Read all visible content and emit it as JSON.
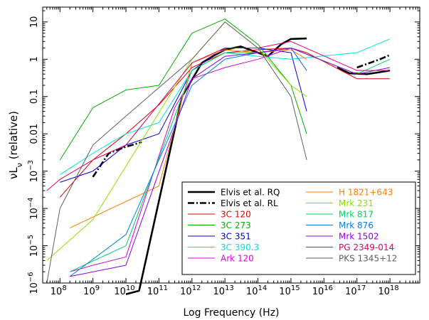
{
  "chart_data": {
    "type": "line",
    "title": "",
    "xlabel": "Log Frequency (Hz)",
    "ylabel": "νLν (relative)",
    "ylabel_parts": {
      "nu1": "ν",
      "L": "L",
      "sub": "ν",
      "rest": " (relative)"
    },
    "x_scale": "log",
    "y_scale": "log",
    "xlim": [
      30000000.0,
      8e+18
    ],
    "ylim": [
      1e-06,
      25
    ],
    "grid": false,
    "legend_position": "lower-right",
    "x_ticks": [
      {
        "value": 100000000.0,
        "base": "10",
        "exp": "8"
      },
      {
        "value": 1000000000.0,
        "base": "10",
        "exp": "9"
      },
      {
        "value": 10000000000.0,
        "base": "10",
        "exp": "10"
      },
      {
        "value": 100000000000.0,
        "base": "10",
        "exp": "11"
      },
      {
        "value": 1000000000000.0,
        "base": "10",
        "exp": "12"
      },
      {
        "value": 10000000000000.0,
        "base": "10",
        "exp": "13"
      },
      {
        "value": 100000000000000.0,
        "base": "10",
        "exp": "14"
      },
      {
        "value": 1000000000000000.0,
        "base": "10",
        "exp": "15"
      },
      {
        "value": 1e+16,
        "base": "10",
        "exp": "16"
      },
      {
        "value": 1e+17,
        "base": "10",
        "exp": "17"
      },
      {
        "value": 1e+18,
        "base": "10",
        "exp": "18"
      }
    ],
    "y_ticks": [
      {
        "value": 1e-06,
        "base": "10",
        "exp": "−6"
      },
      {
        "value": 1e-05,
        "base": "10",
        "exp": "−5"
      },
      {
        "value": 0.0001,
        "base": "10",
        "exp": "−4"
      },
      {
        "value": 0.001,
        "base": "10",
        "exp": "−3"
      },
      {
        "value": 0.01,
        "label": "0.01"
      },
      {
        "value": 0.1,
        "label": "0.1"
      },
      {
        "value": 1,
        "label": "1"
      },
      {
        "value": 10,
        "label": "10"
      }
    ],
    "series": [
      {
        "name": "Elvis et al. RQ",
        "color": "#000000",
        "style": "solid-thick",
        "points": [
          [
            10000000000.0,
            5e-07
          ],
          [
            25000000000.0,
            6.2e-07
          ],
          [
            500000000000.0,
            0.1
          ],
          [
            2000000000000.0,
            0.8
          ],
          [
            5000000000000.0,
            1.3
          ],
          [
            10000000000000.0,
            1.8
          ],
          [
            30000000000000.0,
            2.2
          ],
          [
            100000000000000.0,
            1.5
          ],
          [
            200000000000000.0,
            1.2
          ],
          [
            500000000000000.0,
            2.5
          ],
          [
            1000000000000000.0,
            3.5
          ],
          [
            3000000000000000.0,
            3.6
          ]
        ]
      },
      {
        "name": "",
        "color": "#000000",
        "style": "solid-thick",
        "points": [
          [
            2.5e+16,
            0.6
          ],
          [
            6e+16,
            0.42
          ],
          [
            2e+17,
            0.4
          ],
          [
            5e+17,
            0.45
          ],
          [
            1e+18,
            0.5
          ]
        ]
      },
      {
        "name": "Elvis et al. RL",
        "color": "#000000",
        "style": "dashdot-thick",
        "points": [
          [
            1000000000.0,
            0.0007
          ],
          [
            3000000000.0,
            0.003
          ],
          [
            10000000000.0,
            0.0045
          ],
          [
            30000000000.0,
            0.006
          ]
        ]
      },
      {
        "name": "",
        "color": "#000000",
        "style": "dashdot-thick",
        "points": [
          [
            1e+17,
            0.6
          ],
          [
            5e+17,
            1.0
          ],
          [
            1e+18,
            1.3
          ]
        ]
      },
      {
        "name": "3C 120",
        "color": "#e00000",
        "style": "solid",
        "points": [
          [
            100000000.0,
            0.0002
          ],
          [
            1000000000.0,
            0.002
          ],
          [
            10000000000.0,
            0.01
          ],
          [
            100000000000.0,
            0.06
          ],
          [
            1000000000000.0,
            0.6
          ],
          [
            10000000000000.0,
            1.5
          ],
          [
            100000000000000.0,
            1.8
          ],
          [
            1000000000000000.0,
            2.0
          ],
          [
            3000000000000000.0,
            1.5
          ],
          [
            1e+17,
            0.3
          ],
          [
            1e+18,
            0.3
          ]
        ]
      },
      {
        "name": "3C 273",
        "color": "#00b000",
        "style": "solid",
        "points": [
          [
            100000000.0,
            0.002
          ],
          [
            1000000000.0,
            0.05
          ],
          [
            10000000000.0,
            0.15
          ],
          [
            100000000000.0,
            0.2
          ],
          [
            1000000000000.0,
            5
          ],
          [
            10000000000000.0,
            12
          ],
          [
            100000000000000.0,
            2.5
          ],
          [
            1000000000000000.0,
            0.2
          ],
          [
            3000000000000000.0,
            0.01
          ]
        ]
      },
      {
        "name": "3C 351",
        "color": "#0000d0",
        "style": "solid",
        "points": [
          [
            100000000.0,
            0.0005
          ],
          [
            1000000000.0,
            0.001
          ],
          [
            10000000000.0,
            0.005
          ],
          [
            100000000000.0,
            0.01
          ],
          [
            1000000000000.0,
            0.5
          ],
          [
            10000000000000.0,
            2
          ],
          [
            100000000000000.0,
            2
          ],
          [
            1000000000000000.0,
            1.5
          ],
          [
            3000000000000000.0,
            0.04
          ]
        ]
      },
      {
        "name": "3C 390.3",
        "color": "#00e0e0",
        "style": "solid",
        "points": [
          [
            100000000.0,
            0.0008
          ],
          [
            1000000000.0,
            0.003
          ],
          [
            10000000000.0,
            0.01
          ],
          [
            100000000000.0,
            0.02
          ],
          [
            1000000000000.0,
            0.5
          ],
          [
            10000000000000.0,
            1.5
          ],
          [
            100000000000000.0,
            1.2
          ],
          [
            1000000000000000.0,
            1.0
          ],
          [
            1e+17,
            1.5
          ],
          [
            1e+18,
            3.5
          ]
        ]
      },
      {
        "name": "Ark 120",
        "color": "#e000e0",
        "style": "solid",
        "points": [
          [
            200000000.0,
            2e-06
          ],
          [
            1000000000.0,
            3e-06
          ],
          [
            10000000000.0,
            5e-06
          ],
          [
            300000000000.0,
            0.05
          ],
          [
            1000000000000.0,
            0.3
          ],
          [
            10000000000000.0,
            0.6
          ],
          [
            100000000000000.0,
            1.0
          ],
          [
            1000000000000000.0,
            2.0
          ],
          [
            3000000000000000.0,
            0.5
          ]
        ]
      },
      {
        "name": "H 1821+643",
        "color": "#ff8000",
        "style": "solid",
        "points": [
          [
            200000000.0,
            3e-05
          ],
          [
            100000000000.0,
            0.0004
          ],
          [
            1000000000000.0,
            0.8
          ],
          [
            10000000000000.0,
            1.8
          ],
          [
            100000000000000.0,
            1.5
          ],
          [
            1000000000000000.0,
            1.8
          ],
          [
            3000000000000000.0,
            1.0
          ]
        ]
      },
      {
        "name": "Mrk 231",
        "color": "#88e000",
        "style": "solid",
        "points": [
          [
            40000000.0,
            4e-06
          ],
          [
            1000000000.0,
            5e-05
          ],
          [
            1000000000000.0,
            1.0
          ],
          [
            10000000000000.0,
            10
          ],
          [
            100000000000000.0,
            2
          ],
          [
            1000000000000000.0,
            0.2
          ],
          [
            3000000000000000.0,
            0.1
          ]
        ]
      },
      {
        "name": "Mrk 817",
        "color": "#00d060",
        "style": "solid",
        "points": [
          [
            200000000.0,
            2e-06
          ],
          [
            10000000000.0,
            1e-05
          ],
          [
            1000000000000.0,
            0.5
          ],
          [
            10000000000000.0,
            1.5
          ],
          [
            100000000000000.0,
            1.5
          ],
          [
            1000000000000000.0,
            2
          ],
          [
            1e+17,
            0.4
          ],
          [
            1e+18,
            1
          ]
        ]
      },
      {
        "name": "Mrk 876",
        "color": "#0080e0",
        "style": "solid",
        "points": [
          [
            200000000.0,
            1.5e-06
          ],
          [
            10000000000.0,
            2e-05
          ],
          [
            1000000000000.0,
            0.2
          ],
          [
            10000000000000.0,
            1
          ],
          [
            100000000000000.0,
            1.5
          ],
          [
            1000000000000000.0,
            2
          ],
          [
            3000000000000000.0,
            0.5
          ]
        ]
      },
      {
        "name": "Mrk 1502",
        "color": "#9000e0",
        "style": "solid",
        "points": [
          [
            200000000.0,
            1.5e-06
          ],
          [
            10000000000.0,
            3e-06
          ],
          [
            1000000000000.0,
            0.3
          ],
          [
            10000000000000.0,
            1.2
          ],
          [
            100000000000000.0,
            1.5
          ],
          [
            1000000000000000.0,
            2
          ],
          [
            1e+17,
            0.4
          ],
          [
            1e+18,
            0.6
          ]
        ]
      },
      {
        "name": "PG 2349-014",
        "color": "#e0006a",
        "style": "solid",
        "points": [
          [
            40000000.0,
            0.0003
          ],
          [
            100000000.0,
            0.0006
          ],
          [
            1000000000.0,
            0.002
          ],
          [
            10000000000.0,
            0.005
          ],
          [
            1000000000000.0,
            0.8
          ],
          [
            10000000000000.0,
            2
          ],
          [
            100000000000000.0,
            2
          ],
          [
            1000000000000000.0,
            3
          ],
          [
            1e+17,
            0.5
          ],
          [
            1e+18,
            0.5
          ]
        ]
      },
      {
        "name": "PKS 1345+12",
        "color": "#606060",
        "style": "solid",
        "points": [
          [
            40000000.0,
            1e-06
          ],
          [
            100000000.0,
            0.0001
          ],
          [
            1000000000.0,
            0.005
          ],
          [
            10000000000.0,
            0.03
          ],
          [
            1000000000000.0,
            1
          ],
          [
            10000000000000.0,
            10
          ],
          [
            100000000000000.0,
            2
          ],
          [
            1000000000000000.0,
            0.1
          ],
          [
            3000000000000000.0,
            0.002
          ]
        ]
      }
    ]
  }
}
